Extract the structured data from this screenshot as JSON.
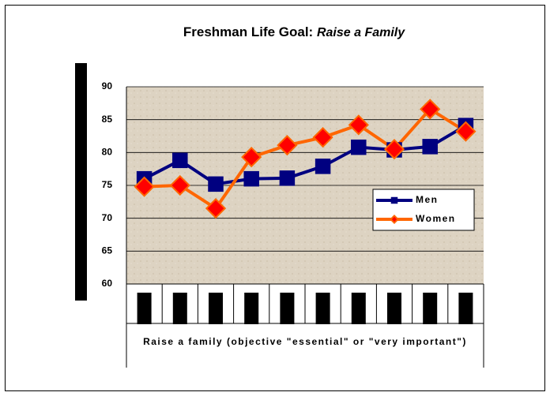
{
  "chart_data": {
    "type": "line",
    "title": "Freshman Life Goal:",
    "title_emphasis": "Raise a Family",
    "x_label": "Raise a family   (objective \"essential\" or \"very important\")",
    "categories": [
      null,
      null,
      null,
      null,
      null,
      null,
      null,
      null,
      null,
      null
    ],
    "series": [
      {
        "name": "Men",
        "color": "#000080",
        "marker": "square",
        "marker_color": "#000080",
        "values": [
          76.0,
          78.8,
          75.2,
          76.0,
          76.1,
          77.9,
          80.8,
          80.4,
          80.9,
          84.1
        ]
      },
      {
        "name": "Women",
        "color": "#ff6600",
        "marker": "diamond",
        "marker_color": "#ff0000",
        "values": [
          74.8,
          75.0,
          71.5,
          79.3,
          81.1,
          82.3,
          84.2,
          80.5,
          86.6,
          83.2
        ]
      }
    ],
    "ylim": [
      60,
      90
    ],
    "yticks": [
      60,
      65,
      70,
      75,
      80,
      85,
      90
    ],
    "grid": true,
    "legend": "right"
  }
}
